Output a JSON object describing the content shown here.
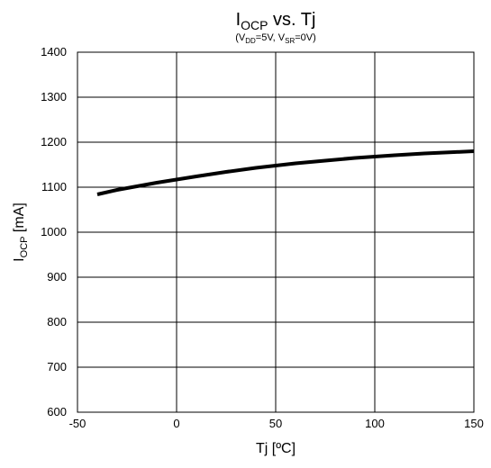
{
  "chart_data": {
    "type": "line",
    "title": {
      "main": "I",
      "main_sub": "OCP",
      "main_rest": " vs. Tj"
    },
    "subtitle": {
      "p1": "(V",
      "s1": "DD",
      "p2": "=5V, V",
      "s2": "SR",
      "p3": "=0V)"
    },
    "xlabel": "Tj [ºC]",
    "ylabel": {
      "main": "I",
      "sub": "OCP",
      "rest": " [mA]"
    },
    "xlim": [
      -50,
      150
    ],
    "ylim": [
      600,
      1400
    ],
    "xticks": [
      -50,
      0,
      50,
      100,
      150
    ],
    "yticks": [
      600,
      700,
      800,
      900,
      1000,
      1100,
      1200,
      1300,
      1400
    ],
    "grid": true,
    "series": [
      {
        "x": [
          -40,
          -30,
          -20,
          -10,
          0,
          10,
          25,
          40,
          50,
          60,
          75,
          90,
          100,
          110,
          125,
          140,
          150
        ],
        "y": [
          1084,
          1094,
          1102,
          1110,
          1117,
          1124,
          1134,
          1143,
          1148,
          1153,
          1159,
          1165,
          1168,
          1171,
          1175,
          1178,
          1180
        ],
        "color": "#000000"
      }
    ]
  }
}
